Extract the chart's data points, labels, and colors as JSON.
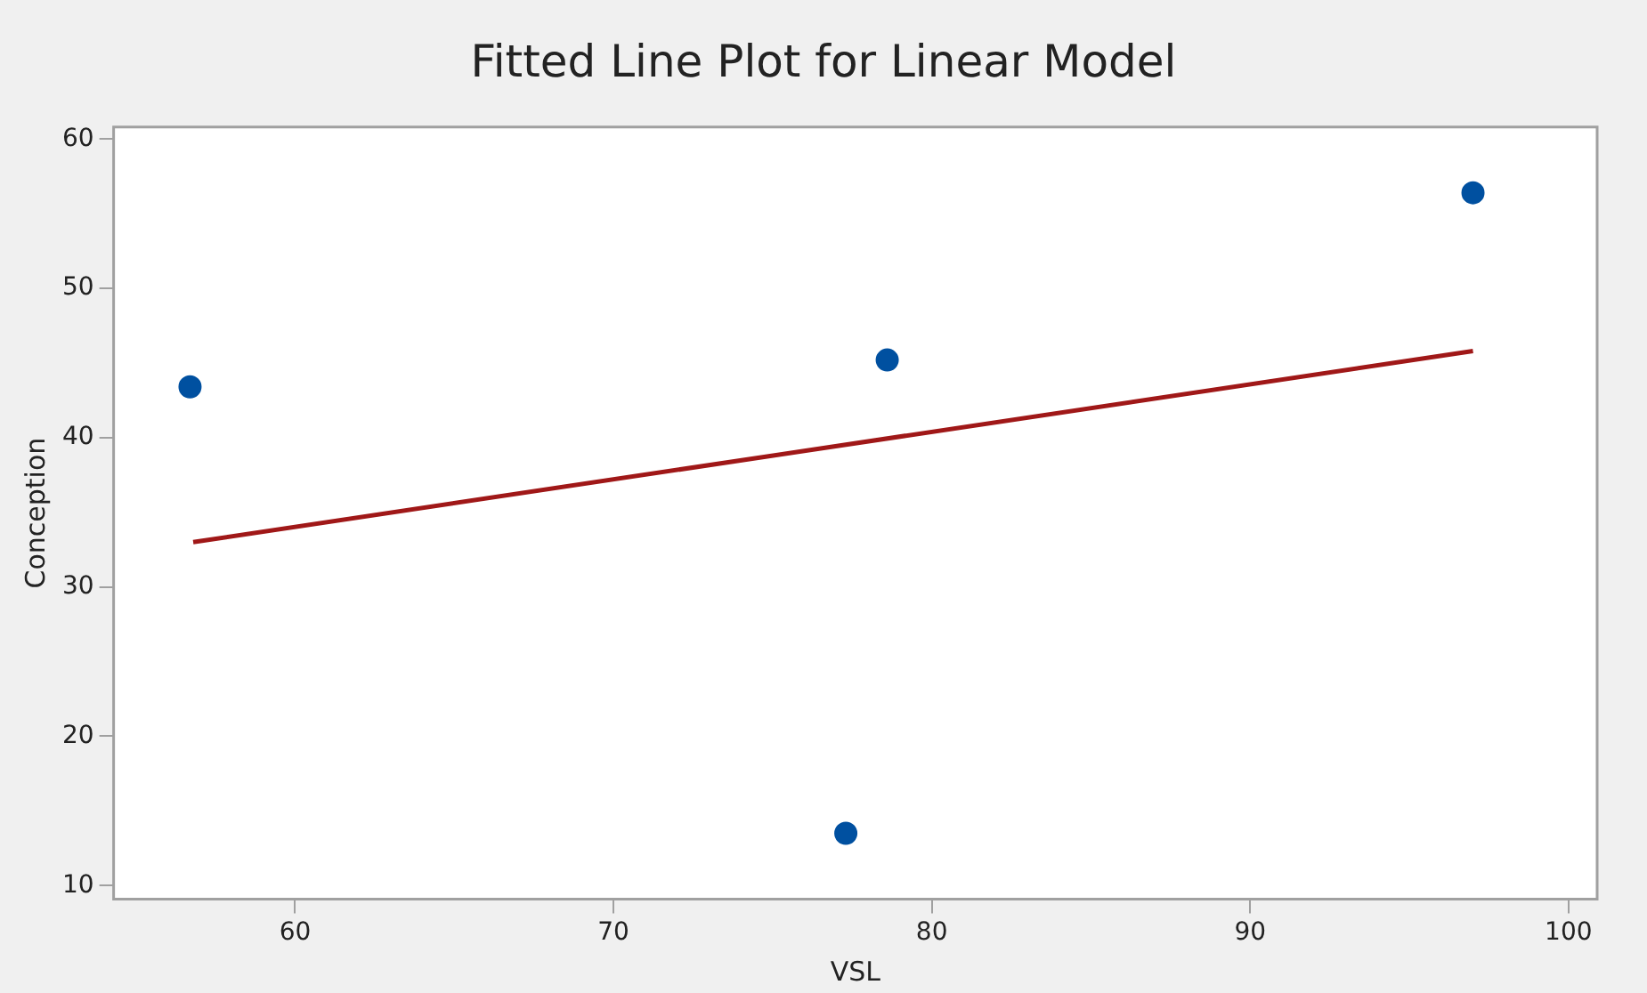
{
  "chart_data": {
    "type": "scatter",
    "title": "Fitted Line Plot for Linear Model",
    "xlabel": "VSL",
    "ylabel": "Conception",
    "x": [
      56.7,
      77.3,
      78.6,
      97.0
    ],
    "series": [
      {
        "color": "#0050a0",
        "marker": "circle",
        "values": [
          43.4,
          13.5,
          45.2,
          56.4
        ]
      },
      {
        "type": "line",
        "color": "#a01818",
        "marker": "none",
        "x": [
          56.8,
          97.0
        ],
        "values": [
          33.0,
          45.8
        ]
      }
    ],
    "xlim": [
      54.3,
      100.9
    ],
    "xticks": [
      60,
      70,
      80,
      90,
      100
    ],
    "ylim": [
      9.1,
      60.8
    ],
    "yticks": [
      10,
      20,
      30,
      40,
      50,
      60
    ],
    "grid": false,
    "legend": false
  }
}
